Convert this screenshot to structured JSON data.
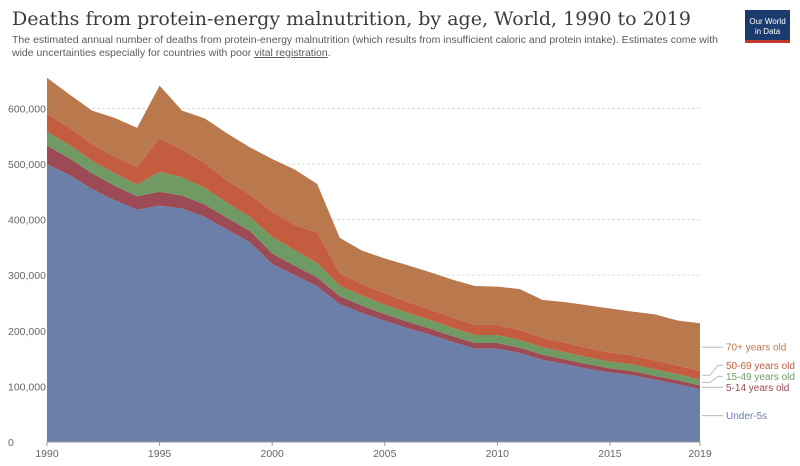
{
  "title": "Deaths from protein-energy malnutrition, by age, World, 1990 to 2019",
  "subtitle_main": "The estimated annual number of deaths from protein-energy malnutrition (which results from insufficient caloric and protein intake). Estimates come with wide uncertainties especially for countries with poor ",
  "subtitle_link": "vital registration",
  "subtitle_end": ".",
  "logo": {
    "line1": "Our World",
    "line2": "in Data"
  },
  "chart_data": {
    "type": "area",
    "stacked": true,
    "x": [
      1990,
      1991,
      1992,
      1993,
      1994,
      1995,
      1996,
      1997,
      1998,
      1999,
      2000,
      2001,
      2002,
      2003,
      2004,
      2005,
      2006,
      2007,
      2008,
      2009,
      2010,
      2011,
      2012,
      2013,
      2014,
      2015,
      2016,
      2017,
      2018,
      2019
    ],
    "xticks": [
      "1990",
      "1995",
      "2000",
      "2005",
      "2010",
      "2015",
      "2019"
    ],
    "ylim": [
      0,
      660000
    ],
    "yticks": [
      {
        "value": 0,
        "label": "0"
      },
      {
        "value": 100000,
        "label": "100,000"
      },
      {
        "value": 200000,
        "label": "200,000"
      },
      {
        "value": 300000,
        "label": "300,000"
      },
      {
        "value": 400000,
        "label": "400,000"
      },
      {
        "value": 500000,
        "label": "500,000"
      },
      {
        "value": 600000,
        "label": "600,000"
      }
    ],
    "grid": "horizontal",
    "legend_position": "right",
    "series": [
      {
        "name": "Under-5s",
        "color": "#6b7fa8",
        "values": [
          500000,
          480000,
          455000,
          435000,
          418000,
          425000,
          420000,
          405000,
          382000,
          360000,
          320000,
          300000,
          280000,
          248000,
          232000,
          218000,
          205000,
          193000,
          180000,
          168000,
          168000,
          160000,
          148000,
          140000,
          132000,
          125000,
          120000,
          112000,
          104000,
          95000
        ]
      },
      {
        "name": "5-14 years old",
        "color": "#9c4a55",
        "values": [
          33000,
          30000,
          28000,
          26000,
          24000,
          25000,
          23000,
          22000,
          21000,
          20000,
          19000,
          17000,
          16000,
          14000,
          13000,
          12000,
          11500,
          11000,
          10500,
          10000,
          10000,
          9500,
          9000,
          8500,
          8000,
          7500,
          7500,
          7000,
          7000,
          6500
        ]
      },
      {
        "name": "15-49 years old",
        "color": "#6f9a63",
        "values": [
          25000,
          24000,
          23000,
          22000,
          21000,
          36000,
          33000,
          30000,
          27000,
          25000,
          30000,
          28000,
          26000,
          19000,
          18000,
          17000,
          16000,
          15500,
          15000,
          14500,
          14500,
          14000,
          13500,
          13000,
          12500,
          12000,
          12000,
          11500,
          11000,
          11000
        ]
      },
      {
        "name": "50-69 years old",
        "color": "#c45c3f",
        "values": [
          32000,
          31000,
          30000,
          30000,
          32000,
          60000,
          50000,
          45000,
          40000,
          40000,
          45000,
          45000,
          55000,
          22000,
          21000,
          20000,
          19500,
          19000,
          18500,
          18000,
          18000,
          17500,
          17000,
          17000,
          16500,
          16500,
          16000,
          16000,
          15500,
          15000
        ]
      },
      {
        "name": "70+ years old",
        "color": "#b9794c",
        "values": [
          65000,
          60000,
          60000,
          70000,
          70000,
          95000,
          70000,
          80000,
          85000,
          85000,
          95000,
          100000,
          87000,
          64000,
          60000,
          63000,
          66000,
          67000,
          68000,
          70000,
          69000,
          74000,
          68000,
          73000,
          77000,
          79000,
          79000,
          83000,
          81000,
          86000
        ]
      }
    ]
  }
}
